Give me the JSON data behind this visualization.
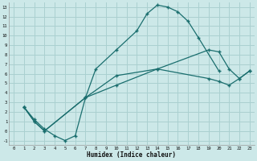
{
  "xlabel": "Humidex (Indice chaleur)",
  "bg_color": "#cce8e8",
  "grid_color": "#aad0d0",
  "line_color": "#1a6e6e",
  "xlim": [
    -0.5,
    23.5
  ],
  "ylim": [
    -1.5,
    13.5
  ],
  "xticks": [
    0,
    1,
    2,
    3,
    4,
    5,
    6,
    7,
    8,
    9,
    10,
    11,
    12,
    13,
    14,
    15,
    16,
    17,
    18,
    19,
    20,
    21,
    22,
    23
  ],
  "yticks": [
    -1,
    0,
    1,
    2,
    3,
    4,
    5,
    6,
    7,
    8,
    9,
    10,
    11,
    12,
    13
  ],
  "line1_x": [
    1,
    2,
    3,
    4,
    5,
    6,
    7,
    8,
    10,
    12,
    13,
    14,
    15,
    16,
    17,
    18,
    20
  ],
  "line1_y": [
    2.5,
    1.2,
    0.2,
    -0.5,
    -1.0,
    -0.5,
    3.5,
    6.5,
    8.5,
    10.5,
    12.3,
    13.2,
    13.0,
    12.5,
    11.5,
    9.8,
    6.3
  ],
  "line2_x": [
    1,
    2,
    3,
    7,
    10,
    14,
    19,
    20,
    21,
    22,
    23
  ],
  "line2_y": [
    2.5,
    1.0,
    0.0,
    3.5,
    5.8,
    6.5,
    8.5,
    8.3,
    6.5,
    5.5,
    6.3
  ],
  "line3_x": [
    1,
    2,
    3,
    7,
    10,
    14,
    19,
    20,
    21,
    22,
    23
  ],
  "line3_y": [
    2.5,
    1.0,
    0.0,
    3.5,
    4.8,
    6.5,
    5.5,
    5.2,
    4.8,
    5.5,
    6.3
  ],
  "marker": "+"
}
